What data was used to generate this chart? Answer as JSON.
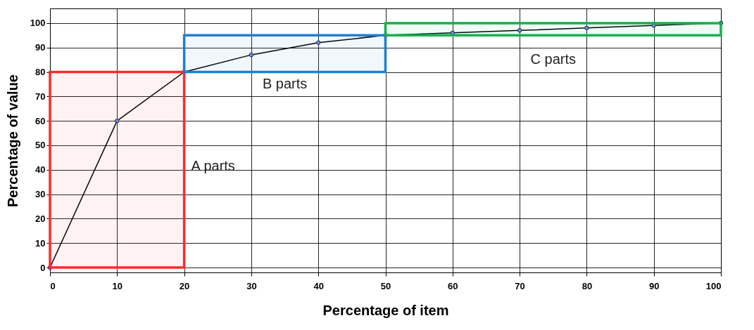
{
  "chart_data": {
    "type": "line",
    "xlabel": "Percentage of item",
    "ylabel": "Percentage of value",
    "x": [
      0,
      10,
      20,
      30,
      40,
      50,
      60,
      70,
      80,
      90,
      100
    ],
    "series": [
      {
        "color": "#000000",
        "values": [
          0,
          60,
          80,
          87,
          92,
          95,
          96,
          97,
          98,
          99,
          100
        ]
      }
    ],
    "xlim": [
      0,
      100
    ],
    "ylim": [
      -2,
      106
    ],
    "xticks": [
      0,
      10,
      20,
      30,
      40,
      50,
      60,
      70,
      80,
      90,
      100
    ],
    "yticks": [
      0,
      10,
      20,
      30,
      40,
      50,
      60,
      70,
      80,
      90,
      100
    ],
    "grid": true,
    "marker": "circle",
    "line_style": "solid",
    "bands": [
      {
        "axis": "x",
        "from": 0,
        "to": 20,
        "label": "A parts",
        "color": "#ff2a2a"
      },
      {
        "axis": "x",
        "from": 20,
        "to": 50,
        "label": "B parts",
        "color": "#1e7fd0"
      },
      {
        "axis": "x",
        "from": 50,
        "to": 100,
        "label": "C parts",
        "color": "#12b24a"
      }
    ]
  }
}
